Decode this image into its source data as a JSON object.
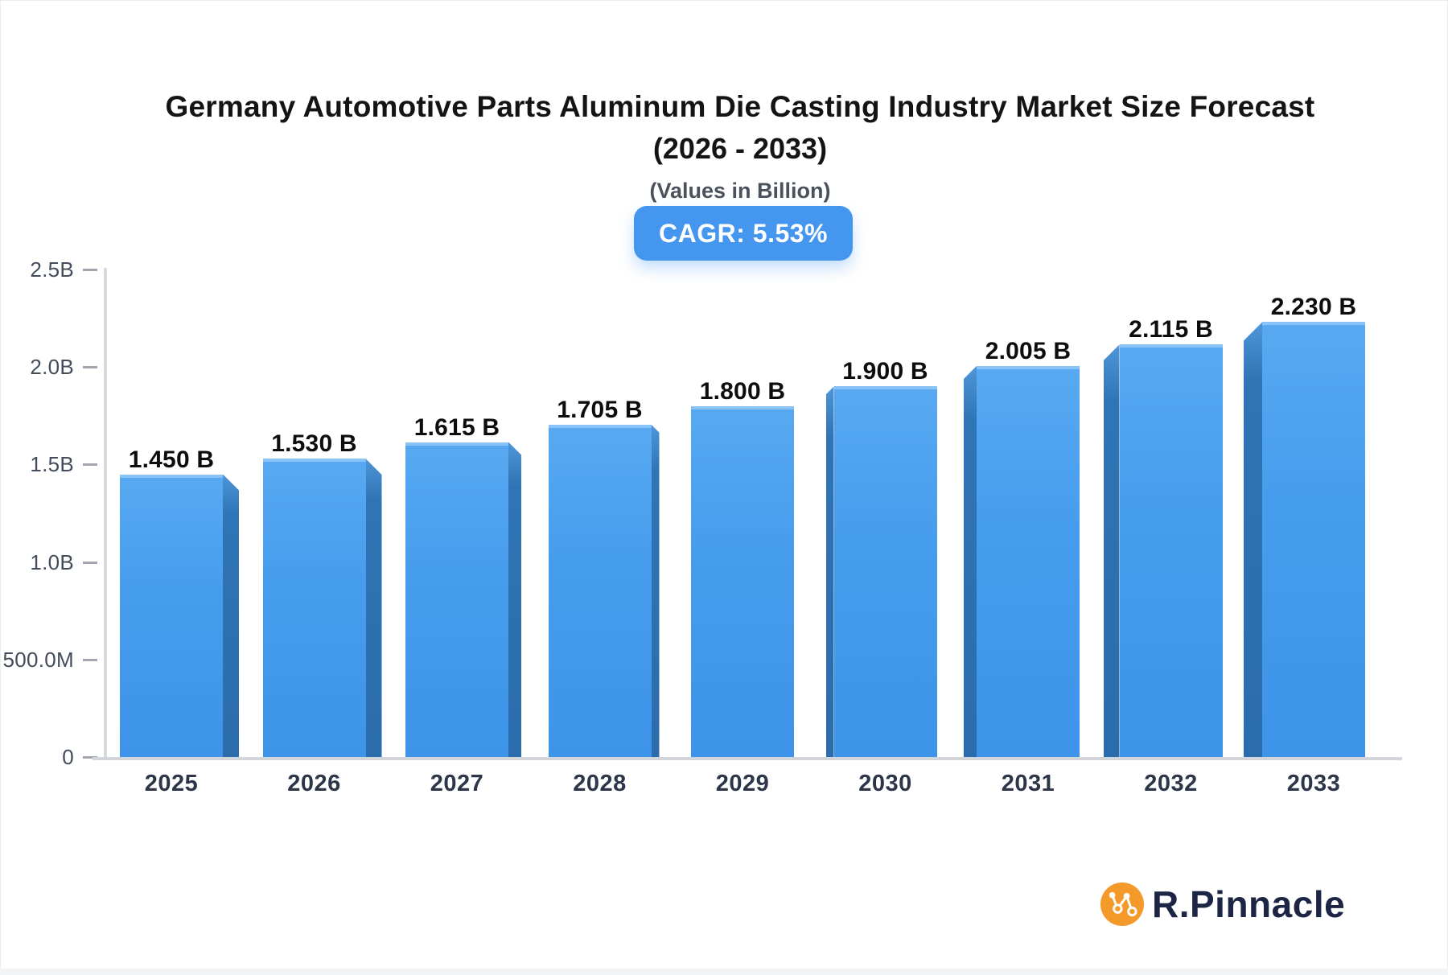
{
  "header": {
    "title_line1": "Germany Automotive Parts Aluminum Die Casting Industry Market Size Forecast",
    "title_line2": "(2026 - 2033)",
    "subtitle": "(Values in Billion)",
    "cagr_badge": "CAGR: 5.53%"
  },
  "chart_data": {
    "type": "bar",
    "title": "Germany Automotive Parts Aluminum Die Casting Industry Market Size Forecast (2026 - 2033)",
    "subtitle": "(Values in Billion)",
    "cagr": "5.53%",
    "categories": [
      "2025",
      "2026",
      "2027",
      "2028",
      "2029",
      "2030",
      "2031",
      "2032",
      "2033"
    ],
    "values": [
      1.45,
      1.53,
      1.615,
      1.705,
      1.8,
      1.9,
      2.005,
      2.115,
      2.23
    ],
    "value_labels": [
      "1.450 B",
      "1.530 B",
      "1.615 B",
      "1.705 B",
      "1.800 B",
      "1.900 B",
      "2.005 B",
      "2.115 B",
      "2.230 B"
    ],
    "unit": "Billion",
    "xlabel": "",
    "ylabel": "",
    "ylim": [
      0,
      2.5
    ],
    "y_ticks": {
      "labels": [
        "2.5B",
        "2.0B",
        "1.5B",
        "1.0B",
        "500.0M",
        "0"
      ],
      "values": [
        2.5,
        2.0,
        1.5,
        1.0,
        0.5,
        0
      ]
    },
    "grid": false,
    "legend": false,
    "bar_style": "3d-perspective"
  },
  "colors": {
    "bar_face": "#479ded",
    "bar_side": "#2b6dac",
    "badge_bg": "#4596ef",
    "axis_line": "#d6d9dd",
    "logo_orange": "#f49a2a",
    "logo_navy": "#1c2544"
  },
  "logo": {
    "text": "R.Pinnacle",
    "icon": "network-nodes-icon"
  }
}
